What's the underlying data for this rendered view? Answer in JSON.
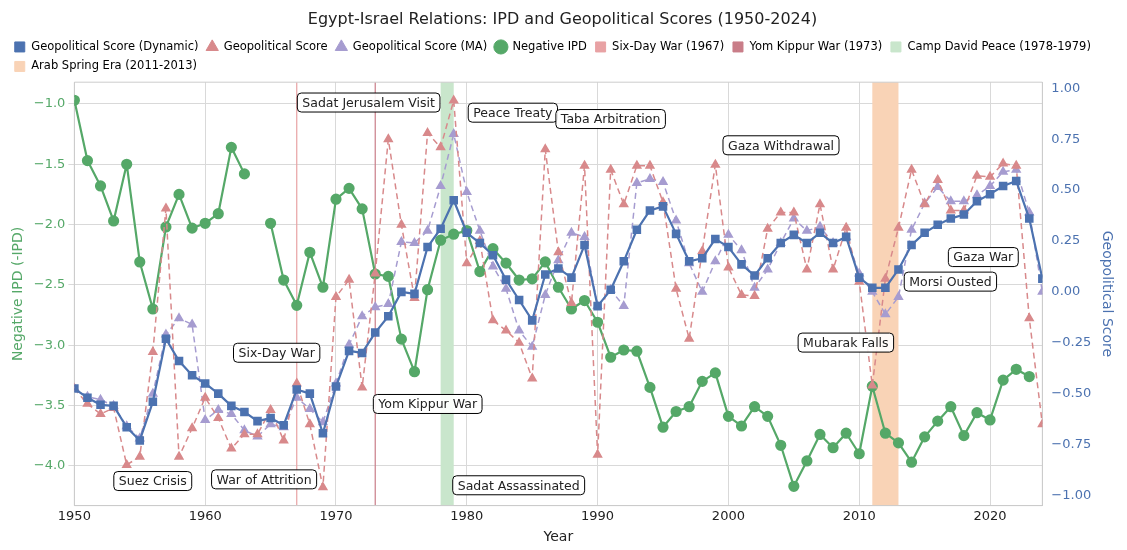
{
  "chart_data": {
    "type": "line",
    "title": "Egypt-Israel Relations: IPD and Geopolitical Scores (1950-2024)",
    "xlabel": "Year",
    "ylabel": "Negative IPD (-IPD)",
    "y2label": "Geopolitical Score",
    "x": [
      1950,
      1951,
      1952,
      1953,
      1954,
      1955,
      1956,
      1957,
      1958,
      1959,
      1960,
      1961,
      1962,
      1963,
      1964,
      1965,
      1966,
      1967,
      1968,
      1969,
      1970,
      1971,
      1972,
      1973,
      1974,
      1975,
      1976,
      1977,
      1978,
      1979,
      1980,
      1981,
      1982,
      1983,
      1984,
      1985,
      1986,
      1987,
      1988,
      1989,
      1990,
      1991,
      1992,
      1993,
      1994,
      1995,
      1996,
      1997,
      1998,
      1999,
      2000,
      2001,
      2002,
      2003,
      2004,
      2005,
      2006,
      2007,
      2008,
      2009,
      2010,
      2011,
      2012,
      2013,
      2014,
      2015,
      2016,
      2017,
      2018,
      2019,
      2020,
      2021,
      2022,
      2023,
      2024
    ],
    "series": [
      {
        "name": "Geopolitical Score (Dynamic)",
        "color": "#4c72b0",
        "axis": "y2",
        "marker": "square",
        "line_style": "solid",
        "values": [
          -0.475,
          -0.52,
          -0.555,
          -0.56,
          -0.665,
          -0.73,
          -0.54,
          -0.23,
          -0.34,
          -0.41,
          -0.45,
          -0.5,
          -0.56,
          -0.59,
          -0.635,
          -0.62,
          -0.655,
          -0.48,
          -0.5,
          -0.695,
          -0.465,
          -0.29,
          -0.3,
          -0.2,
          -0.12,
          0.0,
          -0.01,
          0.22,
          0.31,
          0.45,
          0.29,
          0.24,
          0.18,
          0.06,
          -0.04,
          -0.14,
          0.085,
          0.115,
          0.07,
          0.23,
          -0.07,
          0.01,
          0.15,
          0.305,
          0.4,
          0.42,
          0.285,
          0.15,
          0.165,
          0.26,
          0.22,
          0.135,
          0.08,
          0.165,
          0.24,
          0.28,
          0.24,
          0.29,
          0.24,
          0.27,
          0.07,
          0.02,
          0.02,
          0.11,
          0.23,
          0.29,
          0.33,
          0.36,
          0.38,
          0.445,
          0.48,
          0.52,
          0.545,
          0.36,
          0.065
        ]
      },
      {
        "name": "Geopolitical Score",
        "color": "#d8898b",
        "axis": "y2",
        "marker": "triangle",
        "line_style": "dashed",
        "values": [
          -0.475,
          -0.55,
          -0.6,
          -0.57,
          -0.85,
          -0.81,
          -0.295,
          0.41,
          -0.81,
          -0.67,
          -0.52,
          -0.62,
          -0.77,
          -0.7,
          -0.7,
          -0.58,
          -0.73,
          -0.45,
          -0.65,
          -0.96,
          -0.025,
          0.06,
          -0.47,
          0.09,
          0.75,
          0.33,
          -0.03,
          0.78,
          0.71,
          0.94,
          0.14,
          0.25,
          -0.14,
          -0.19,
          -0.25,
          -0.425,
          0.7,
          0.195,
          -0.055,
          0.62,
          -0.8,
          0.6,
          0.43,
          0.62,
          0.62,
          0.44,
          0.015,
          -0.23,
          0.2,
          0.625,
          0.12,
          -0.015,
          -0.02,
          0.31,
          0.39,
          0.39,
          0.11,
          0.43,
          0.11,
          0.315,
          0.05,
          -0.46,
          0.065,
          0.315,
          0.6,
          0.43,
          0.55,
          0.4,
          0.4,
          0.57,
          0.565,
          0.63,
          0.62,
          -0.13,
          -0.65
        ]
      },
      {
        "name": "Geopolitical Score (MA)",
        "color": "#a69cd0",
        "axis": "y2",
        "marker": "triangle",
        "line_style": "dashed",
        "values": [
          -0.475,
          -0.515,
          -0.53,
          -0.56,
          -0.66,
          -0.72,
          -0.5,
          -0.21,
          -0.13,
          -0.16,
          -0.63,
          -0.58,
          -0.6,
          -0.68,
          -0.71,
          -0.65,
          -0.665,
          -0.52,
          -0.575,
          -0.64,
          -0.45,
          -0.26,
          -0.12,
          -0.075,
          -0.06,
          0.245,
          0.24,
          0.3,
          0.52,
          0.775,
          0.49,
          0.3,
          0.125,
          0.015,
          -0.19,
          -0.27,
          -0.015,
          0.155,
          0.29,
          0.27,
          -0.07,
          0.01,
          -0.07,
          0.535,
          0.555,
          0.54,
          0.35,
          0.14,
          0.0,
          0.15,
          0.28,
          0.205,
          0.02,
          0.11,
          0.24,
          0.36,
          0.3,
          0.32,
          0.24,
          0.27,
          0.09,
          0.0,
          -0.11,
          -0.025,
          0.305,
          0.435,
          0.515,
          0.445,
          0.445,
          0.475,
          0.52,
          0.59,
          0.6,
          0.39,
          0.0
        ]
      },
      {
        "name": "Negative IPD",
        "color": "#55a868",
        "axis": "y",
        "marker": "circle",
        "line_style": "solid",
        "values": [
          -0.97,
          -1.47,
          -1.68,
          -1.97,
          -1.5,
          -2.31,
          -2.7,
          -2.02,
          -1.75,
          -2.03,
          -1.99,
          -1.91,
          -1.36,
          -1.58,
          null,
          -1.99,
          -2.46,
          -2.67,
          -2.23,
          -2.52,
          -1.79,
          -1.7,
          -1.87,
          -2.41,
          -2.43,
          -2.95,
          -3.22,
          -2.54,
          -2.13,
          -2.08,
          -2.05,
          -2.39,
          -2.2,
          -2.32,
          -2.46,
          -2.45,
          -2.31,
          -2.52,
          -2.7,
          -2.63,
          -2.81,
          -3.1,
          -3.04,
          -3.05,
          -3.35,
          -3.68,
          -3.55,
          -3.51,
          -3.3,
          -3.23,
          -3.59,
          -3.67,
          -3.51,
          -3.59,
          -3.83,
          -4.17,
          -3.96,
          -3.74,
          -3.85,
          -3.73,
          -3.9,
          -3.34,
          -3.73,
          -3.81,
          -3.97,
          -3.76,
          -3.63,
          -3.51,
          -3.75,
          -3.56,
          -3.62,
          -3.29,
          -3.2,
          -3.26,
          null
        ]
      }
    ],
    "bands": [
      {
        "axis": "x",
        "from": 1967,
        "to": 1967,
        "label": "Six-Day War (1967)",
        "color": "#e8a2a4"
      },
      {
        "axis": "x",
        "from": 1973,
        "to": 1973,
        "label": "Yom Kippur War (1973)",
        "color": "#c97d88"
      },
      {
        "axis": "x",
        "from": 1978,
        "to": 1979,
        "label": "Camp David Peace (1978-1979)",
        "color": "#c9e6cc"
      },
      {
        "axis": "x",
        "from": 2011,
        "to": 2013,
        "label": "Arab Spring Era (2011-2013)",
        "color": "#f9d3b6"
      }
    ],
    "annotations": [
      "Suez Crisis",
      "Six-Day War",
      "War of Attrition",
      "Yom Kippur War",
      "Sadat Jerusalem Visit",
      "Peace Treaty",
      "Sadat Assassinated",
      "Taba Arbitration",
      "Gaza Withdrawal",
      "Mubarak Falls",
      "Morsi Ousted",
      "Gaza War"
    ],
    "xlim": [
      1950,
      2024
    ],
    "xticks": [
      1950,
      1960,
      1970,
      1980,
      1990,
      2000,
      2010,
      2020
    ],
    "ylim": [
      -4.33,
      -0.82
    ],
    "yticks": [
      {
        "value": -4,
        "label": "−4.0"
      },
      {
        "value": -3.5,
        "label": "−3.5"
      },
      {
        "value": -3,
        "label": "−3.0"
      },
      {
        "value": -2.5,
        "label": "−2.5"
      },
      {
        "value": -2,
        "label": "−2.0"
      },
      {
        "value": -1.5,
        "label": "−1.5"
      },
      {
        "value": -1,
        "label": "−1.0"
      }
    ],
    "y2lim": [
      -1.05,
      1.03
    ],
    "y2ticks": [
      {
        "value": -1,
        "label": "−1.00"
      },
      {
        "value": -0.75,
        "label": "−0.75"
      },
      {
        "value": -0.5,
        "label": "−0.50"
      },
      {
        "value": -0.25,
        "label": "−0.25"
      },
      {
        "value": 0,
        "label": "0.00"
      },
      {
        "value": 0.25,
        "label": "0.25"
      },
      {
        "value": 0.5,
        "label": "0.50"
      },
      {
        "value": 0.75,
        "label": "0.75"
      },
      {
        "value": 1,
        "label": "1.00"
      }
    ],
    "grid": true,
    "legend": "top left"
  }
}
